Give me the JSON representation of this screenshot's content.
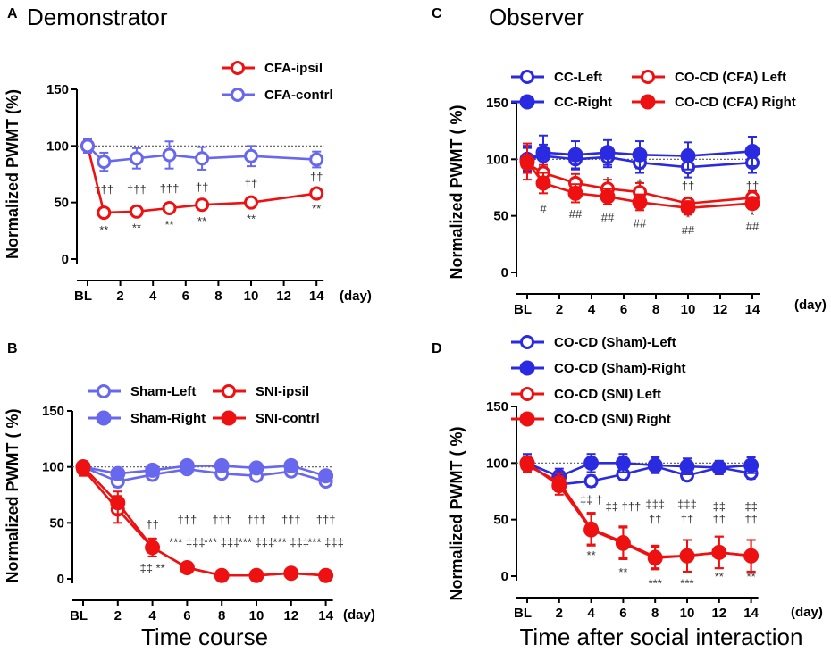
{
  "panel_letters": [
    "A",
    "B",
    "C",
    "D"
  ],
  "panel_titles": {
    "A": "Demonstrator",
    "C": "Observer"
  },
  "bottom_labels": {
    "B": "Time course",
    "D": "Time after social interaction"
  },
  "colors": {
    "blue": "#3a3ae8",
    "blue_light": "#6868ee",
    "red": "#ee1111"
  },
  "chart_data": [
    {
      "panel": "A",
      "type": "line",
      "ylabel": "Normalized PWMT (%)",
      "xunit": "(day)",
      "ylim": [
        0,
        150
      ],
      "yticks": [
        "0",
        "50",
        "100",
        "150"
      ],
      "xticks": [
        "BL",
        "2",
        "4",
        "6",
        "8",
        "10",
        "12",
        "14"
      ],
      "reference_line": 100,
      "series": [
        {
          "name": "CFA-ipsil",
          "color": "#ee1111",
          "fill": "open",
          "x": [
            0,
            1,
            3,
            5,
            7,
            10,
            14
          ],
          "values": [
            100,
            41,
            42,
            45,
            48,
            50,
            58
          ],
          "err": [
            6,
            4,
            3,
            3,
            3,
            3,
            4
          ]
        },
        {
          "name": "CFA-contrl",
          "color": "#6868ee",
          "fill": "open",
          "x": [
            0,
            1,
            3,
            5,
            7,
            10,
            14
          ],
          "values": [
            100,
            86,
            89,
            92,
            89,
            91,
            88
          ],
          "err": [
            6,
            8,
            9,
            12,
            10,
            9,
            7
          ]
        }
      ],
      "annotations": [
        {
          "x": 1,
          "y": 58,
          "text": "†††"
        },
        {
          "x": 3,
          "y": 58,
          "text": "†††"
        },
        {
          "x": 5,
          "y": 59,
          "text": "†††"
        },
        {
          "x": 7,
          "y": 60,
          "text": "††"
        },
        {
          "x": 10,
          "y": 63,
          "text": "††"
        },
        {
          "x": 14,
          "y": 69,
          "text": "††"
        },
        {
          "x": 1,
          "y": 22,
          "text": "**"
        },
        {
          "x": 3,
          "y": 24,
          "text": "**"
        },
        {
          "x": 5,
          "y": 27,
          "text": "**"
        },
        {
          "x": 7,
          "y": 30,
          "text": "**"
        },
        {
          "x": 10,
          "y": 32,
          "text": "**"
        },
        {
          "x": 14,
          "y": 41,
          "text": "**"
        }
      ]
    },
    {
      "panel": "B",
      "type": "line",
      "ylabel": "Normalized PWMT ( %)",
      "xunit": "(day)",
      "ylim": [
        0,
        150
      ],
      "yticks": [
        "0",
        "50",
        "100",
        "150"
      ],
      "xticks": [
        "BL",
        "2",
        "4",
        "6",
        "8",
        "10",
        "12",
        "14"
      ],
      "reference_line": 100,
      "series": [
        {
          "name": "Sham-Left",
          "color": "#6868ee",
          "fill": "open",
          "x": [
            0,
            2,
            4,
            6,
            8,
            10,
            12,
            14
          ],
          "values": [
            100,
            87,
            93,
            98,
            94,
            92,
            96,
            87
          ],
          "err": [
            5,
            5,
            4,
            4,
            4,
            4,
            4,
            4
          ]
        },
        {
          "name": "Sham-Right",
          "color": "#6868ee",
          "fill": "filled",
          "x": [
            0,
            2,
            4,
            6,
            8,
            10,
            12,
            14
          ],
          "values": [
            100,
            94,
            97,
            101,
            101,
            99,
            101,
            92
          ],
          "err": [
            4,
            4,
            4,
            4,
            4,
            4,
            4,
            4
          ]
        },
        {
          "name": "SNI-ipsil",
          "color": "#ee1111",
          "fill": "open",
          "x": [
            0,
            2,
            4,
            6,
            8,
            10,
            12,
            14
          ],
          "values": [
            98,
            62,
            28,
            10,
            3,
            3,
            5,
            3
          ],
          "err": [
            6,
            12,
            8,
            3,
            2,
            2,
            2,
            2
          ]
        },
        {
          "name": "SNI-contrl",
          "color": "#ee1111",
          "fill": "filled",
          "x": [
            0,
            2,
            4,
            6,
            8,
            10,
            12,
            14
          ],
          "values": [
            100,
            68,
            28,
            10,
            3,
            3,
            5,
            3
          ],
          "err": [
            5,
            10,
            8,
            3,
            2,
            2,
            2,
            2
          ]
        }
      ],
      "annotations": [
        {
          "x": 4,
          "y": 45,
          "text": "††"
        },
        {
          "x": 6,
          "y": 49,
          "text": "†††"
        },
        {
          "x": 8,
          "y": 49,
          "text": "†††"
        },
        {
          "x": 10,
          "y": 49,
          "text": "†††"
        },
        {
          "x": 12,
          "y": 49,
          "text": "†††"
        },
        {
          "x": 14,
          "y": 49,
          "text": "†††"
        },
        {
          "x": 6,
          "y": 29,
          "text": "***  ‡‡‡"
        },
        {
          "x": 8,
          "y": 29,
          "text": "***  ‡‡‡"
        },
        {
          "x": 10,
          "y": 29,
          "text": "***  ‡‡‡"
        },
        {
          "x": 12,
          "y": 29,
          "text": "***  ‡‡‡"
        },
        {
          "x": 14,
          "y": 29,
          "text": "***  ‡‡‡"
        },
        {
          "x": 4,
          "y": 6,
          "text": "‡‡  **"
        }
      ]
    },
    {
      "panel": "C",
      "type": "line",
      "ylabel": "Normalized PWMT ( %)",
      "xunit": "(day)",
      "ylim": [
        0,
        150
      ],
      "yticks": [
        "0",
        "50",
        "100",
        "150"
      ],
      "xticks": [
        "BL",
        "2",
        "4",
        "6",
        "8",
        "10",
        "12",
        "14"
      ],
      "reference_line": 100,
      "series": [
        {
          "name": "CC-Left",
          "color": "#2a2ae0",
          "fill": "open",
          "x": [
            0,
            1,
            3,
            5,
            7,
            10,
            14
          ],
          "values": [
            100,
            103,
            100,
            102,
            97,
            93,
            97
          ],
          "err": [
            12,
            10,
            9,
            9,
            9,
            9,
            9
          ]
        },
        {
          "name": "CC-Right",
          "color": "#2a2ae0",
          "fill": "filled",
          "x": [
            0,
            1,
            3,
            5,
            7,
            10,
            14
          ],
          "values": [
            100,
            106,
            104,
            106,
            104,
            103,
            107
          ],
          "err": [
            10,
            15,
            12,
            11,
            12,
            12,
            13
          ]
        },
        {
          "name": "CO-CD (CFA) Left",
          "color": "#ee1111",
          "fill": "open",
          "x": [
            0,
            1,
            3,
            5,
            7,
            10,
            14
          ],
          "values": [
            96,
            88,
            79,
            74,
            71,
            61,
            66
          ],
          "err": [
            8,
            7,
            8,
            8,
            8,
            5,
            6
          ]
        },
        {
          "name": "CO-CD (CFA) Right",
          "color": "#ee1111",
          "fill": "filled",
          "x": [
            0,
            1,
            3,
            5,
            7,
            10,
            14
          ],
          "values": [
            98,
            79,
            70,
            67,
            62,
            57,
            61
          ],
          "err": [
            16,
            9,
            8,
            7,
            7,
            6,
            5
          ]
        }
      ],
      "annotations": [
        {
          "x": 5,
          "y": 77,
          "text": "†"
        },
        {
          "x": 7,
          "y": 75,
          "text": "†"
        },
        {
          "x": 10,
          "y": 73,
          "text": "††"
        },
        {
          "x": 14,
          "y": 73,
          "text": "††"
        },
        {
          "x": 1,
          "y": 53,
          "text": "#"
        },
        {
          "x": 3,
          "y": 48,
          "text": "##"
        },
        {
          "x": 5,
          "y": 45,
          "text": "##"
        },
        {
          "x": 7,
          "y": 40,
          "text": "##"
        },
        {
          "x": 10,
          "y": 45,
          "text": "*"
        },
        {
          "x": 10,
          "y": 34,
          "text": "##"
        },
        {
          "x": 14,
          "y": 47,
          "text": "*"
        },
        {
          "x": 14,
          "y": 37,
          "text": "##"
        }
      ]
    },
    {
      "panel": "D",
      "type": "line",
      "ylabel": "Normalized PWMT ( %)",
      "xunit": "(day)",
      "ylim": [
        0,
        150
      ],
      "yticks": [
        "0",
        "50",
        "100",
        "150"
      ],
      "xticks": [
        "BL",
        "2",
        "4",
        "6",
        "8",
        "10",
        "12",
        "14"
      ],
      "reference_line": 100,
      "series": [
        {
          "name": "CO-CD (Sham)-Left",
          "color": "#2a2ae0",
          "fill": "open",
          "x": [
            0,
            2,
            4,
            6,
            8,
            10,
            12,
            14
          ],
          "values": [
            100,
            81,
            84,
            90,
            97,
            89,
            96,
            91
          ],
          "err": [
            6,
            6,
            5,
            5,
            5,
            4,
            5,
            5
          ]
        },
        {
          "name": "CO-CD (Sham)-Right",
          "color": "#2a2ae0",
          "fill": "filled",
          "x": [
            0,
            2,
            4,
            6,
            8,
            10,
            12,
            14
          ],
          "values": [
            100,
            88,
            100,
            100,
            98,
            97,
            96,
            98
          ],
          "err": [
            8,
            7,
            8,
            8,
            7,
            7,
            6,
            7
          ]
        },
        {
          "name": "CO-CD (SNI) Left",
          "color": "#ee1111",
          "fill": "open",
          "x": [
            0,
            2,
            4,
            6,
            8,
            10,
            12,
            14
          ],
          "values": [
            98,
            83,
            42,
            30,
            17,
            18,
            21,
            18
          ],
          "err": [
            6,
            8,
            14,
            14,
            10,
            14,
            14,
            14
          ]
        },
        {
          "name": "CO-CD (SNI) Right",
          "color": "#ee1111",
          "fill": "filled",
          "x": [
            0,
            2,
            4,
            6,
            8,
            10,
            12,
            14
          ],
          "values": [
            100,
            80,
            41,
            29,
            16,
            18,
            21,
            18
          ],
          "err": [
            6,
            8,
            14,
            14,
            10,
            14,
            14,
            14
          ]
        }
      ],
      "annotations": [
        {
          "x": 4,
          "y": 64,
          "text": "‡‡  †"
        },
        {
          "x": 6,
          "y": 58,
          "text": "‡‡  †††"
        },
        {
          "x": 8,
          "y": 47,
          "text": "††"
        },
        {
          "x": 10,
          "y": 47,
          "text": "††"
        },
        {
          "x": 12,
          "y": 47,
          "text": "††"
        },
        {
          "x": 14,
          "y": 47,
          "text": "††"
        },
        {
          "x": 8,
          "y": 60,
          "text": "‡‡‡"
        },
        {
          "x": 10,
          "y": 60,
          "text": "‡‡‡"
        },
        {
          "x": 12,
          "y": 58,
          "text": "‡‡"
        },
        {
          "x": 14,
          "y": 58,
          "text": "‡‡"
        },
        {
          "x": 4,
          "y": 15,
          "text": "**"
        },
        {
          "x": 6,
          "y": 0,
          "text": "**"
        },
        {
          "x": 8,
          "y": -10,
          "text": "***"
        },
        {
          "x": 10,
          "y": -10,
          "text": "***"
        },
        {
          "x": 12,
          "y": -4,
          "text": "**"
        },
        {
          "x": 14,
          "y": -4,
          "text": "**"
        }
      ]
    }
  ]
}
